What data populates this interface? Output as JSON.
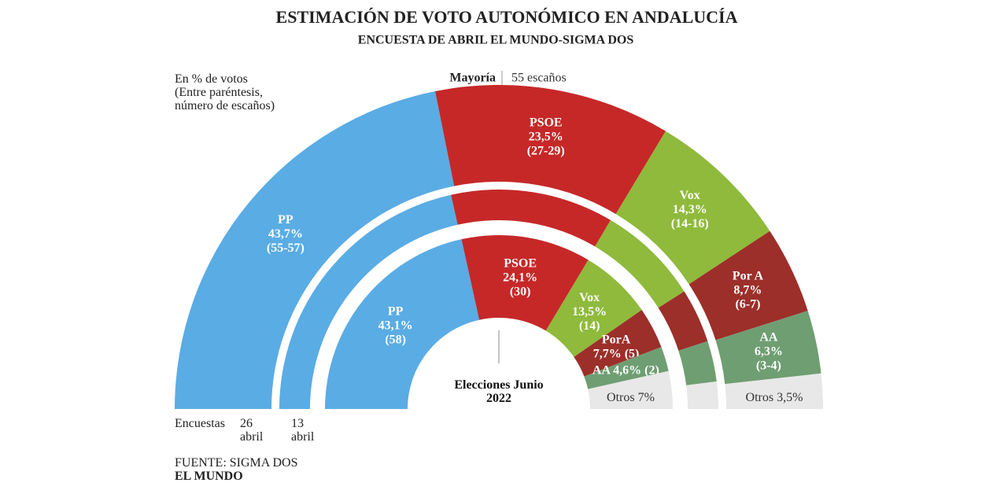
{
  "chart_data": {
    "type": "semi-donut",
    "title": "ESTIMACIÓN DE VOTO AUTONÓMICO EN ANDALUCÍA",
    "subtitle": "ENCUESTA DE ABRIL EL MUNDO-SIGMA DOS",
    "note": "En % de votos",
    "note2": "(Entre paréntesis, número de escaños)",
    "majority_label": "Mayoría",
    "majority_value": "55 escaños",
    "polls_label": "Encuestas",
    "source": "FUENTE: SIGMA DOS",
    "brand": "EL MUNDO",
    "colors": [
      "#5aace4",
      "#c62828",
      "#8fba3c",
      "#9c2f2a",
      "#6f9e72",
      "#e8e8e8"
    ],
    "rings": [
      {
        "label": "26 abril",
        "parties": [
          "PP",
          "PSOE",
          "Vox",
          "Por A",
          "AA",
          "Otros"
        ],
        "values": [
          43.7,
          23.5,
          14.3,
          8.7,
          6.3,
          3.5
        ],
        "value_labels": [
          "43,7%",
          "23,5%",
          "14,3%",
          "8,7%",
          "6,3%",
          "3,5%"
        ],
        "seats": [
          "(55-57)",
          "(27-29)",
          "(14-16)",
          "(6-7)",
          "(3-4)",
          null
        ]
      },
      {
        "label": "13 abril",
        "values": [
          43,
          24,
          15,
          8,
          6,
          4
        ]
      },
      {
        "label": "Elecciones Junio 2022",
        "parties": [
          "PP",
          "PSOE",
          "Vox",
          "PorA",
          "AA",
          "Otros"
        ],
        "values": [
          43.1,
          24.1,
          13.5,
          7.7,
          4.6,
          7
        ],
        "value_labels": [
          "43,1%",
          "24,1%",
          "13,5%",
          "7,7%",
          "4,6%",
          "7%"
        ],
        "seats": [
          "(58)",
          "(30)",
          "(14)",
          "(5)",
          "(2)",
          null
        ]
      }
    ]
  }
}
